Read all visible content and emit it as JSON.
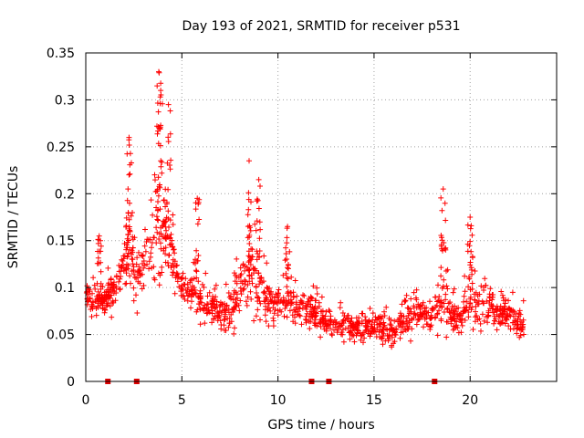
{
  "chart_data": {
    "type": "scatter",
    "title": "Day 193 of 2021, SRMTID for receiver p531",
    "xlabel": "GPS time / hours",
    "ylabel": "SRMTID / TECUs",
    "xlim": [
      0,
      24.5
    ],
    "ylim": [
      0,
      0.35
    ],
    "xticks": [
      0,
      5,
      10,
      15,
      20
    ],
    "yticks": [
      0,
      0.05,
      0.1,
      0.15,
      0.2,
      0.25,
      0.3,
      0.35
    ],
    "ytick_labels": [
      "0",
      "0.05",
      "0.1",
      "0.15",
      "0.2",
      "0.25",
      "0.3",
      "0.35"
    ],
    "grid": true,
    "marker": "+",
    "color": "#ff0000",
    "baseline_markers_x": [
      1.15,
      2.65,
      11.75,
      12.65,
      18.15
    ],
    "envelope": {
      "x": [
        0,
        0.5,
        1,
        1.5,
        2,
        2.3,
        2.6,
        3,
        3.5,
        3.8,
        4,
        4.3,
        4.6,
        5,
        5.5,
        6,
        6.5,
        7,
        7.5,
        8,
        8.5,
        9,
        9.5,
        10,
        10.5,
        11,
        11.5,
        12,
        12.5,
        13,
        13.5,
        14,
        14.5,
        15,
        15.5,
        16,
        16.5,
        17,
        17.5,
        18,
        18.5,
        19,
        19.5,
        20,
        20.5,
        21,
        21.5,
        22,
        22.5,
        22.8
      ],
      "lo": [
        0.07,
        0.06,
        0.06,
        0.07,
        0.08,
        0.08,
        0.07,
        0.08,
        0.09,
        0.1,
        0.11,
        0.1,
        0.09,
        0.08,
        0.07,
        0.06,
        0.05,
        0.05,
        0.05,
        0.05,
        0.06,
        0.06,
        0.05,
        0.06,
        0.06,
        0.06,
        0.05,
        0.05,
        0.04,
        0.04,
        0.04,
        0.04,
        0.04,
        0.04,
        0.03,
        0.03,
        0.04,
        0.04,
        0.05,
        0.05,
        0.04,
        0.04,
        0.04,
        0.05,
        0.05,
        0.06,
        0.05,
        0.05,
        0.04,
        0.04
      ],
      "hi": [
        0.11,
        0.12,
        0.12,
        0.13,
        0.18,
        0.21,
        0.16,
        0.17,
        0.22,
        0.28,
        0.23,
        0.24,
        0.16,
        0.13,
        0.13,
        0.12,
        0.12,
        0.1,
        0.11,
        0.14,
        0.19,
        0.16,
        0.12,
        0.11,
        0.12,
        0.11,
        0.11,
        0.1,
        0.09,
        0.08,
        0.09,
        0.08,
        0.09,
        0.08,
        0.09,
        0.08,
        0.09,
        0.1,
        0.1,
        0.1,
        0.16,
        0.1,
        0.1,
        0.14,
        0.11,
        0.11,
        0.1,
        0.1,
        0.09,
        0.09
      ]
    },
    "peaks": [
      {
        "x": 2.2,
        "y": 0.205
      },
      {
        "x": 2.25,
        "y": 0.26
      },
      {
        "x": 3.8,
        "y": 0.33
      },
      {
        "x": 3.9,
        "y": 0.31
      },
      {
        "x": 4.3,
        "y": 0.295
      },
      {
        "x": 5.8,
        "y": 0.195
      },
      {
        "x": 8.5,
        "y": 0.235
      },
      {
        "x": 9.0,
        "y": 0.215
      },
      {
        "x": 18.6,
        "y": 0.205
      },
      {
        "x": 20.0,
        "y": 0.175
      },
      {
        "x": 0.7,
        "y": 0.155
      },
      {
        "x": 10.5,
        "y": 0.165
      }
    ],
    "sample_count": 1400
  }
}
